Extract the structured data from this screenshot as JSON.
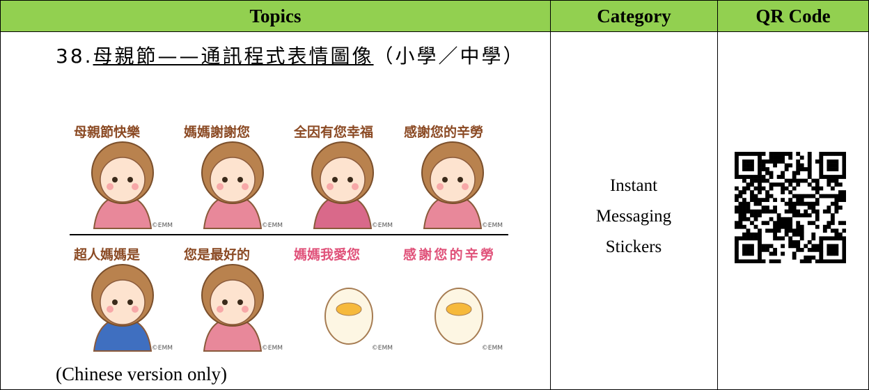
{
  "header": {
    "topics": "Topics",
    "category": "Category",
    "qr_code": "QR Code"
  },
  "row": {
    "number": "38.",
    "title": "母親節——通訊程式表情圖像",
    "levels": "（小學／中學）",
    "stickers": [
      [
        "母親節快樂",
        "媽媽謝謝您",
        "全因有您幸福",
        "感謝您的辛勞"
      ],
      [
        "超人媽媽是",
        "您是最好的",
        "媽媽我愛您",
        "感謝您的辛勞"
      ]
    ],
    "copyright": "©EMM",
    "note": "(Chinese version only)",
    "category": "Instant Messaging Stickers"
  }
}
